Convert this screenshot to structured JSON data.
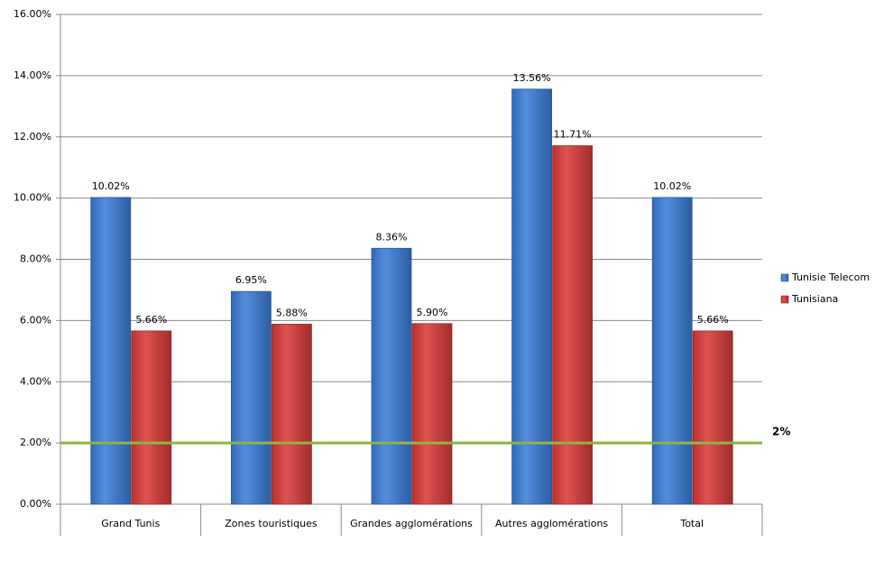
{
  "chart_data": {
    "type": "bar",
    "categories": [
      "Grand Tunis",
      "Zones touristiques",
      "Grandes agglomérations",
      "Autres agglomérations",
      "Total"
    ],
    "series": [
      {
        "name": "Tunisie Telecom",
        "color": "#3b7dd8",
        "values": [
          10.02,
          6.95,
          8.36,
          13.56,
          10.02
        ],
        "value_labels": [
          "10.02%",
          "6.95%",
          "8.36%",
          "13.56%",
          "10.02%"
        ]
      },
      {
        "name": "Tunisiana",
        "color": "#d93a38",
        "values": [
          5.66,
          5.88,
          5.9,
          11.71,
          5.66
        ],
        "value_labels": [
          "5.66%",
          "5.88%",
          "5.90%",
          "11.71%",
          "5.66%"
        ]
      }
    ],
    "ylim": [
      0,
      16
    ],
    "yticks": [
      {
        "value": 0,
        "label": "0.00%"
      },
      {
        "value": 2,
        "label": "2.00%"
      },
      {
        "value": 4,
        "label": "4.00%"
      },
      {
        "value": 6,
        "label": "6.00%"
      },
      {
        "value": 8,
        "label": "8.00%"
      },
      {
        "value": 10,
        "label": "10.00%"
      },
      {
        "value": 12,
        "label": "12.00%"
      },
      {
        "value": 14,
        "label": "14.00%"
      },
      {
        "value": 16,
        "label": "16.00%"
      }
    ],
    "grid": true,
    "legend": "right",
    "reference_line": {
      "value": 2,
      "label": "2%",
      "color": "#8db542"
    }
  }
}
